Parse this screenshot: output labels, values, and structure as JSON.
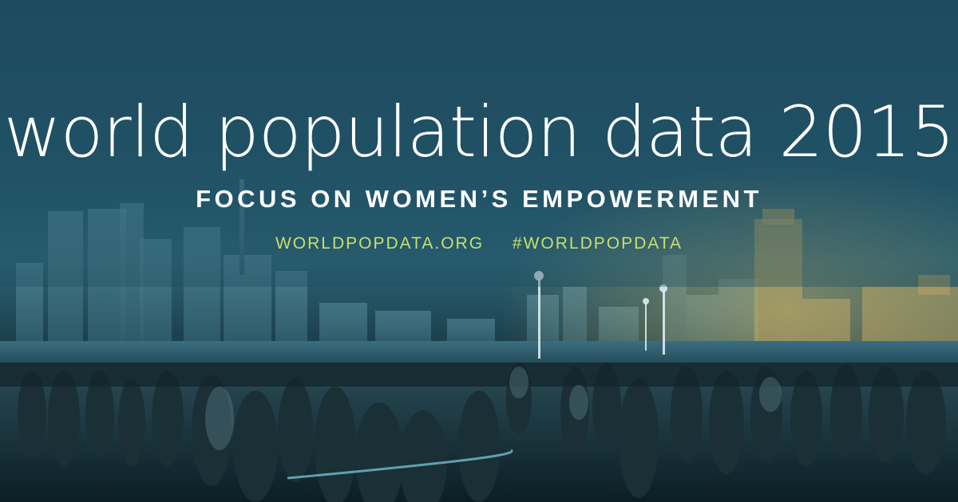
{
  "banner": {
    "title": "world population data 2015",
    "subtitle": "FOCUS ON WOMEN’S EMPOWERMENT",
    "website": "WORLDPOPDATA.ORG",
    "hashtag": "#WORLDPOPDATA"
  },
  "colors": {
    "background_top": "#1e4b5f",
    "title_text": "#ffffff",
    "link_text": "#c7e06a"
  }
}
